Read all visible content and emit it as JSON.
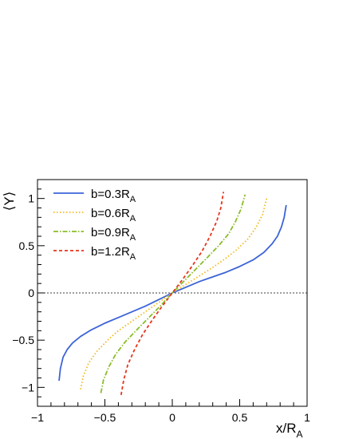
{
  "chart_data": {
    "type": "line",
    "title": "",
    "xlabel": "x/R",
    "xlabel_sub": "A",
    "ylabel": "⟨Y⟩",
    "xlim": [
      -1,
      1
    ],
    "ylim": [
      -1.2,
      1.2
    ],
    "x_ticks": [
      -1,
      -0.5,
      0,
      0.5,
      1
    ],
    "x_tick_labels": [
      "−1",
      "−0.5",
      "0",
      "0.5",
      "1"
    ],
    "y_ticks": [
      -1,
      -0.5,
      0,
      0.5,
      1
    ],
    "y_tick_labels": [
      "−1",
      "−0.5",
      "0",
      "0.5",
      "1"
    ],
    "reference_line_y": 0,
    "grid": false,
    "legend_position": "top-left",
    "series": [
      {
        "name": "b=0.3R",
        "name_sub": "A",
        "color": "#3c64d8",
        "dash": "solid",
        "points": [
          [
            -0.84,
            -0.93
          ],
          [
            -0.83,
            -0.8
          ],
          [
            -0.81,
            -0.68
          ],
          [
            -0.78,
            -0.6
          ],
          [
            -0.74,
            -0.53
          ],
          [
            -0.68,
            -0.46
          ],
          [
            -0.6,
            -0.39
          ],
          [
            -0.5,
            -0.32
          ],
          [
            -0.4,
            -0.26
          ],
          [
            -0.3,
            -0.2
          ],
          [
            -0.2,
            -0.14
          ],
          [
            -0.1,
            -0.07
          ],
          [
            0,
            0
          ],
          [
            0.1,
            0.06
          ],
          [
            0.2,
            0.12
          ],
          [
            0.3,
            0.17
          ],
          [
            0.4,
            0.22
          ],
          [
            0.5,
            0.28
          ],
          [
            0.6,
            0.35
          ],
          [
            0.68,
            0.43
          ],
          [
            0.74,
            0.52
          ],
          [
            0.78,
            0.6
          ],
          [
            0.81,
            0.7
          ],
          [
            0.83,
            0.8
          ],
          [
            0.845,
            0.93
          ]
        ]
      },
      {
        "name": "b=0.6R",
        "name_sub": "A",
        "color": "#f2b91c",
        "dash": "dotted",
        "points": [
          [
            -0.68,
            -1.02
          ],
          [
            -0.66,
            -0.88
          ],
          [
            -0.62,
            -0.74
          ],
          [
            -0.56,
            -0.62
          ],
          [
            -0.48,
            -0.5
          ],
          [
            -0.4,
            -0.4
          ],
          [
            -0.3,
            -0.3
          ],
          [
            -0.2,
            -0.2
          ],
          [
            -0.1,
            -0.1
          ],
          [
            0,
            0
          ],
          [
            0.1,
            0.09
          ],
          [
            0.2,
            0.18
          ],
          [
            0.3,
            0.27
          ],
          [
            0.4,
            0.37
          ],
          [
            0.48,
            0.46
          ],
          [
            0.56,
            0.57
          ],
          [
            0.62,
            0.69
          ],
          [
            0.67,
            0.83
          ],
          [
            0.7,
            1.0
          ]
        ]
      },
      {
        "name": "b=0.9R",
        "name_sub": "A",
        "color": "#8bbd2a",
        "dash": "dashdot",
        "points": [
          [
            -0.53,
            -1.06
          ],
          [
            -0.51,
            -0.92
          ],
          [
            -0.47,
            -0.78
          ],
          [
            -0.42,
            -0.65
          ],
          [
            -0.35,
            -0.52
          ],
          [
            -0.27,
            -0.4
          ],
          [
            -0.18,
            -0.27
          ],
          [
            -0.09,
            -0.14
          ],
          [
            0,
            0
          ],
          [
            0.09,
            0.13
          ],
          [
            0.18,
            0.26
          ],
          [
            0.27,
            0.39
          ],
          [
            0.35,
            0.51
          ],
          [
            0.42,
            0.63
          ],
          [
            0.47,
            0.76
          ],
          [
            0.51,
            0.89
          ],
          [
            0.54,
            1.04
          ]
        ]
      },
      {
        "name": "b=1.2R",
        "name_sub": "A",
        "color": "#e8341b",
        "dash": "dashed",
        "points": [
          [
            -0.38,
            -1.08
          ],
          [
            -0.36,
            -0.92
          ],
          [
            -0.33,
            -0.76
          ],
          [
            -0.28,
            -0.6
          ],
          [
            -0.22,
            -0.44
          ],
          [
            -0.15,
            -0.29
          ],
          [
            -0.08,
            -0.15
          ],
          [
            0,
            0
          ],
          [
            0.08,
            0.15
          ],
          [
            0.15,
            0.29
          ],
          [
            0.22,
            0.44
          ],
          [
            0.28,
            0.6
          ],
          [
            0.33,
            0.76
          ],
          [
            0.36,
            0.9
          ],
          [
            0.38,
            1.07
          ]
        ]
      }
    ]
  }
}
